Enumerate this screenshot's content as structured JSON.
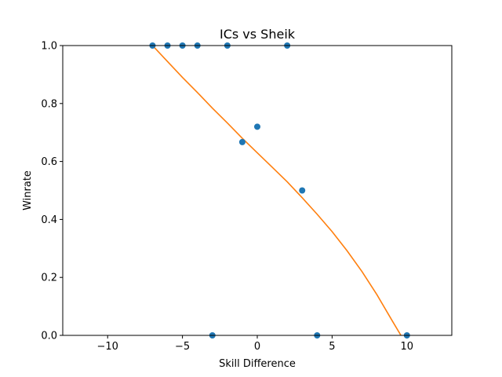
{
  "chart_data": {
    "type": "scatter",
    "title": "ICs vs Sheik",
    "xlabel": "Skill Difference",
    "ylabel": "Winrate",
    "xlim": [
      -13,
      13
    ],
    "ylim": [
      0,
      1
    ],
    "xticks": [
      -10,
      -5,
      0,
      5,
      10
    ],
    "xtick_labels": [
      "−10",
      "−5",
      "0",
      "5",
      "10"
    ],
    "yticks": [
      0,
      0.2,
      0.4,
      0.6,
      0.8,
      1.0
    ],
    "ytick_labels": [
      "0.0",
      "0.2",
      "0.4",
      "0.6",
      "0.8",
      "1.0"
    ],
    "grid": false,
    "legend": "none",
    "series": [
      {
        "kind": "scatter",
        "color": "#1f77b4",
        "x": [
          -7,
          -6,
          -5,
          -4,
          -2,
          2,
          -1,
          0,
          3,
          -3,
          4,
          10
        ],
        "y": [
          1.0,
          1.0,
          1.0,
          1.0,
          1.0,
          1.0,
          0.667,
          0.72,
          0.5,
          0.0,
          0.0,
          0.0
        ]
      },
      {
        "kind": "line",
        "color": "#ff7f0e",
        "x": [
          -7,
          -6,
          -5,
          -4,
          -3,
          -2,
          -1,
          0,
          1,
          2,
          3,
          4,
          5,
          6,
          7,
          8,
          9,
          9.6
        ],
        "y": [
          1.0,
          0.945,
          0.89,
          0.838,
          0.784,
          0.733,
          0.68,
          0.63,
          0.58,
          0.53,
          0.475,
          0.418,
          0.358,
          0.292,
          0.22,
          0.14,
          0.052,
          0.0
        ]
      }
    ]
  }
}
